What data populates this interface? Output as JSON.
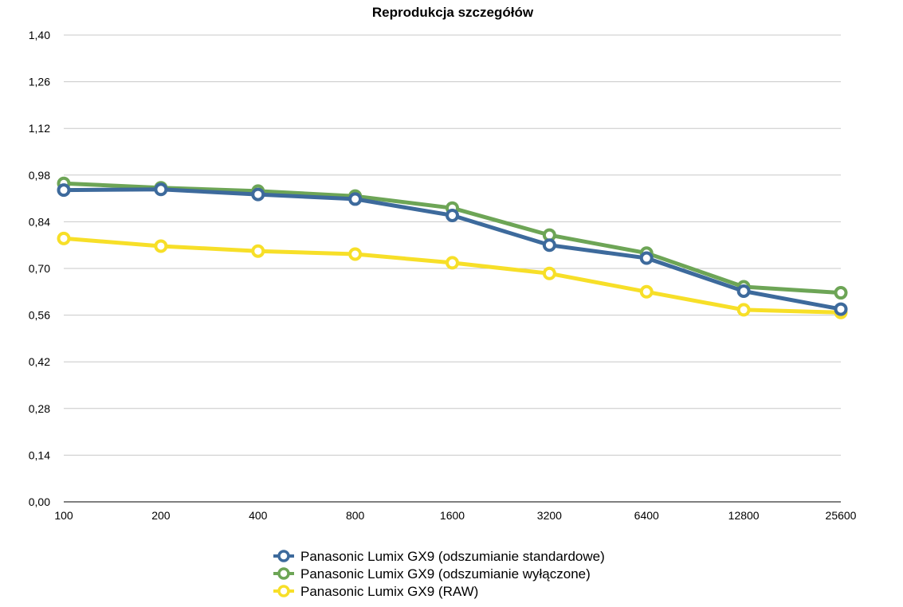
{
  "chart_data": {
    "type": "line",
    "title": "Reprodukcja szczegółów",
    "xlabel": "",
    "ylabel": "",
    "categories": [
      "100",
      "200",
      "400",
      "800",
      "1600",
      "3200",
      "6400",
      "12800",
      "25600"
    ],
    "y_ticks": [
      "0,00",
      "0,14",
      "0,28",
      "0,42",
      "0,56",
      "0,70",
      "0,84",
      "0,98",
      "1,12",
      "1,26",
      "1,40"
    ],
    "ylim": [
      0,
      1.4
    ],
    "grid": true,
    "legend_position": "bottom",
    "series": [
      {
        "name": "Panasonic Lumix GX9 (odszumianie standardowe)",
        "color": "#3d6a9c",
        "values": [
          0.935,
          0.937,
          0.922,
          0.908,
          0.859,
          0.77,
          0.731,
          0.632,
          0.578
        ]
      },
      {
        "name": "Panasonic Lumix GX9 (odszumianie wyłączone)",
        "color": "#6da556",
        "values": [
          0.955,
          0.942,
          0.932,
          0.917,
          0.881,
          0.8,
          0.746,
          0.645,
          0.627
        ]
      },
      {
        "name": "Panasonic Lumix GX9 (RAW)",
        "color": "#f7df28",
        "values": [
          0.79,
          0.767,
          0.752,
          0.743,
          0.717,
          0.685,
          0.63,
          0.576,
          0.568
        ]
      }
    ]
  }
}
